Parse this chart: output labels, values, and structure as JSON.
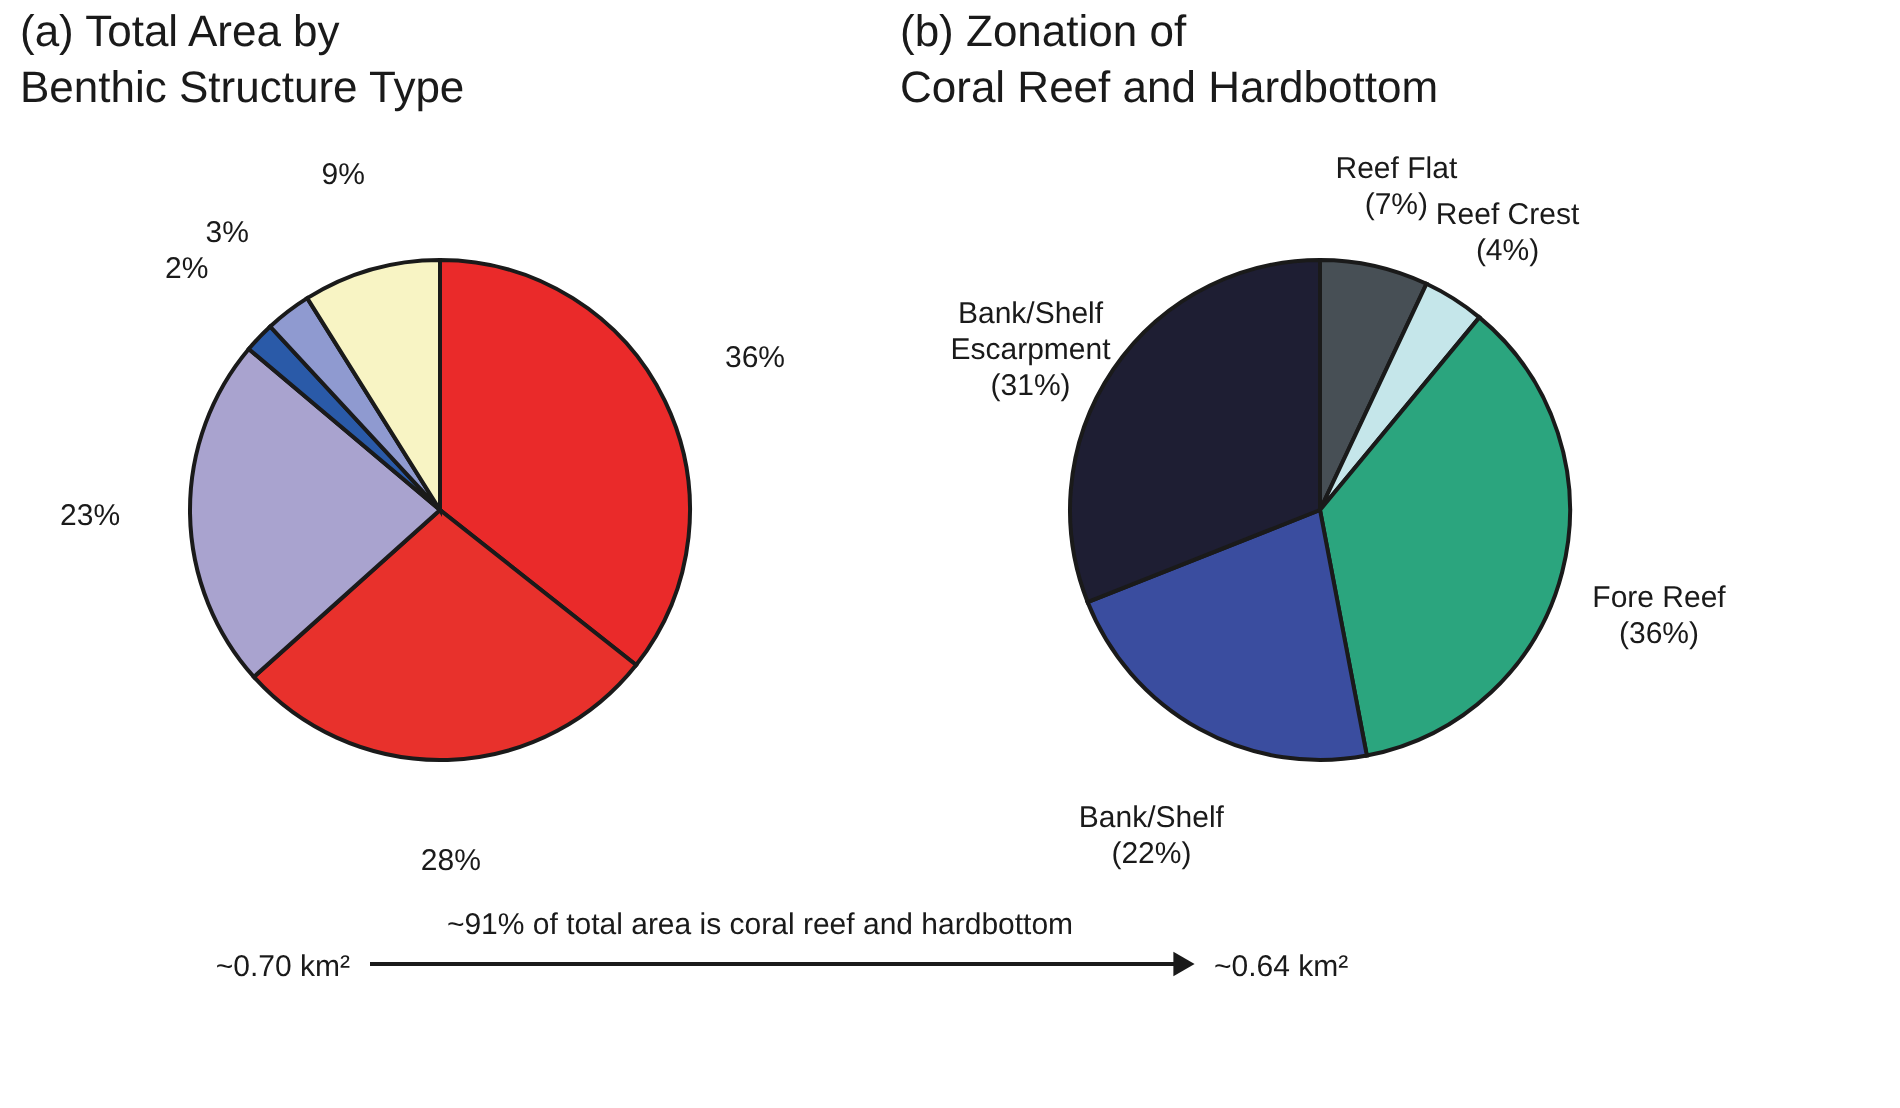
{
  "chart_data": [
    {
      "type": "pie",
      "title": "(a)  Total Area by\n      Benthic Structure Type",
      "categories": [
        null,
        null,
        null,
        null,
        null,
        null
      ],
      "values": [
        36,
        28,
        23,
        2,
        3,
        9
      ],
      "colors": [
        "#ea2a2a",
        "#e8312c",
        "#a9a3cf",
        "#2a5aa8",
        "#8f9ad0",
        "#f8f4c4"
      ],
      "value_labels": [
        "36%",
        "28%",
        "23%",
        "2%",
        "3%",
        "9%"
      ],
      "annotations": [
        "~91% of total area is coral reef and hardbottom",
        "~0.70 km²",
        "~0.64 km²"
      ]
    },
    {
      "type": "pie",
      "title": "(b)  Zonation of\n      Coral Reef and Hardbottom",
      "categories": [
        "Reef Flat",
        "Reef Crest",
        "Fore Reef",
        "Bank/Shelf",
        "Bank/Shelf Escarpment"
      ],
      "values": [
        7,
        4,
        36,
        22,
        31
      ],
      "colors": [
        "#474f55",
        "#c5e6ea",
        "#2ba57e",
        "#3a4d9f",
        "#1e1e33"
      ],
      "value_labels": [
        "(7%)",
        "(4%)",
        "(36%)",
        "(22%)",
        "(31%)"
      ]
    }
  ]
}
